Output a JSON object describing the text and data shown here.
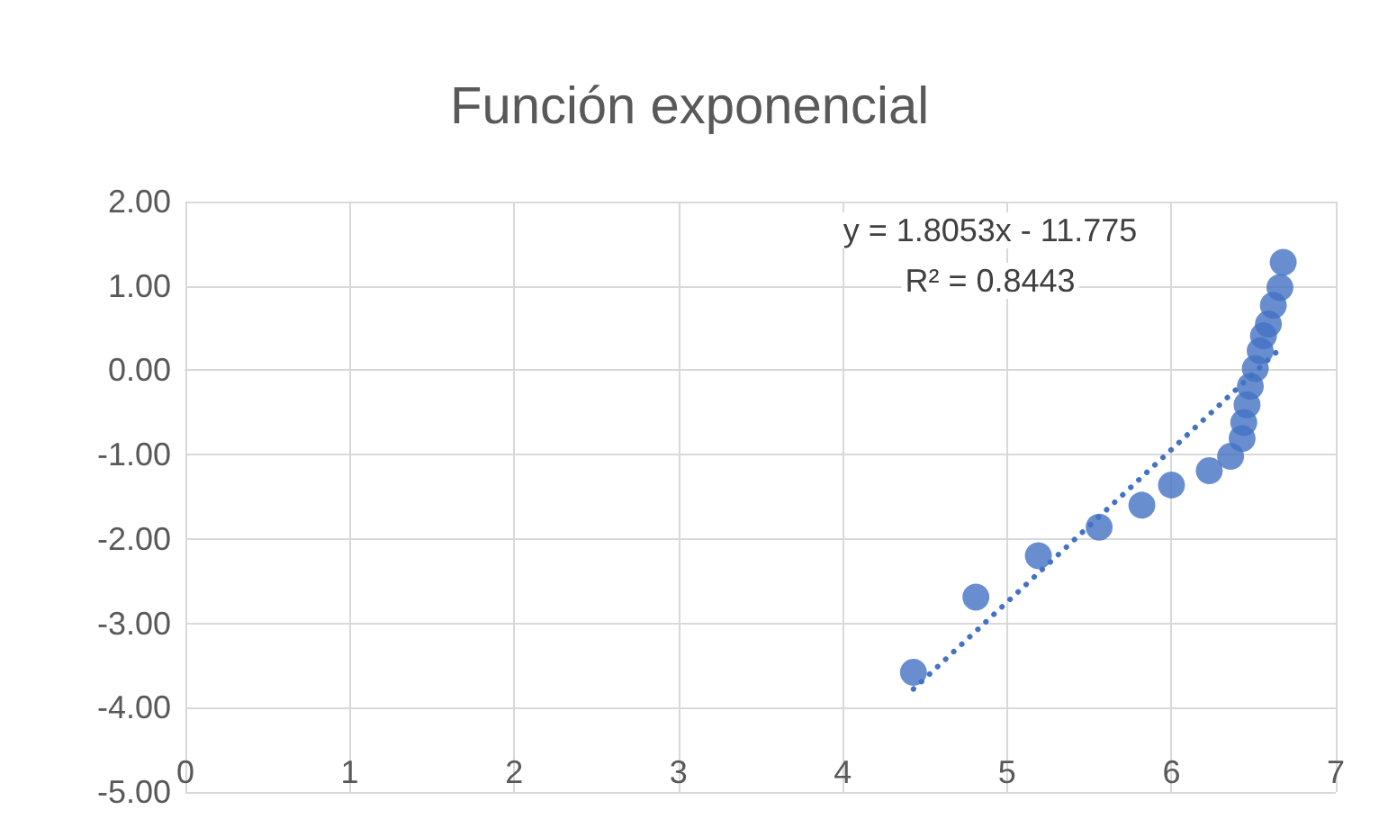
{
  "chart_data": {
    "type": "scatter",
    "title": "Función exponencial",
    "series": [
      {
        "color": "#4472c4",
        "marker": "circle",
        "x": [
          4.43,
          4.81,
          5.19,
          5.56,
          5.82,
          6.0,
          6.23,
          6.36,
          6.43,
          6.44,
          6.46,
          6.48,
          6.51,
          6.54,
          6.56,
          6.59,
          6.62,
          6.66,
          6.68
        ],
        "values": [
          -3.58,
          -2.69,
          -2.2,
          -1.86,
          -1.6,
          -1.36,
          -1.19,
          -1.02,
          -0.81,
          -0.62,
          -0.41,
          -0.19,
          0.02,
          0.23,
          0.41,
          0.55,
          0.77,
          0.98,
          1.28
        ]
      },
      {
        "type": "line",
        "color": "#4472c4",
        "line_style": "dotted",
        "marker": "none",
        "x": [
          4.43,
          6.68
        ],
        "values": [
          -3.78,
          0.29
        ]
      }
    ],
    "annotations": [
      "y = 1.8053x - 11.775",
      "R² = 0.8443"
    ],
    "xlim": [
      0,
      7
    ],
    "xticks": [
      0,
      1,
      2,
      3,
      4,
      5,
      6,
      7
    ],
    "ylim": [
      -5,
      2
    ],
    "yticks": [
      {
        "value": -5,
        "label": "-5.00"
      },
      {
        "value": -4,
        "label": "-4.00"
      },
      {
        "value": -3,
        "label": "-3.00"
      },
      {
        "value": -2,
        "label": "-2.00"
      },
      {
        "value": -1,
        "label": "-1.00"
      },
      {
        "value": 0,
        "label": "0.00"
      },
      {
        "value": 1,
        "label": "1.00"
      },
      {
        "value": 2,
        "label": "2.00"
      }
    ],
    "grid": true
  }
}
